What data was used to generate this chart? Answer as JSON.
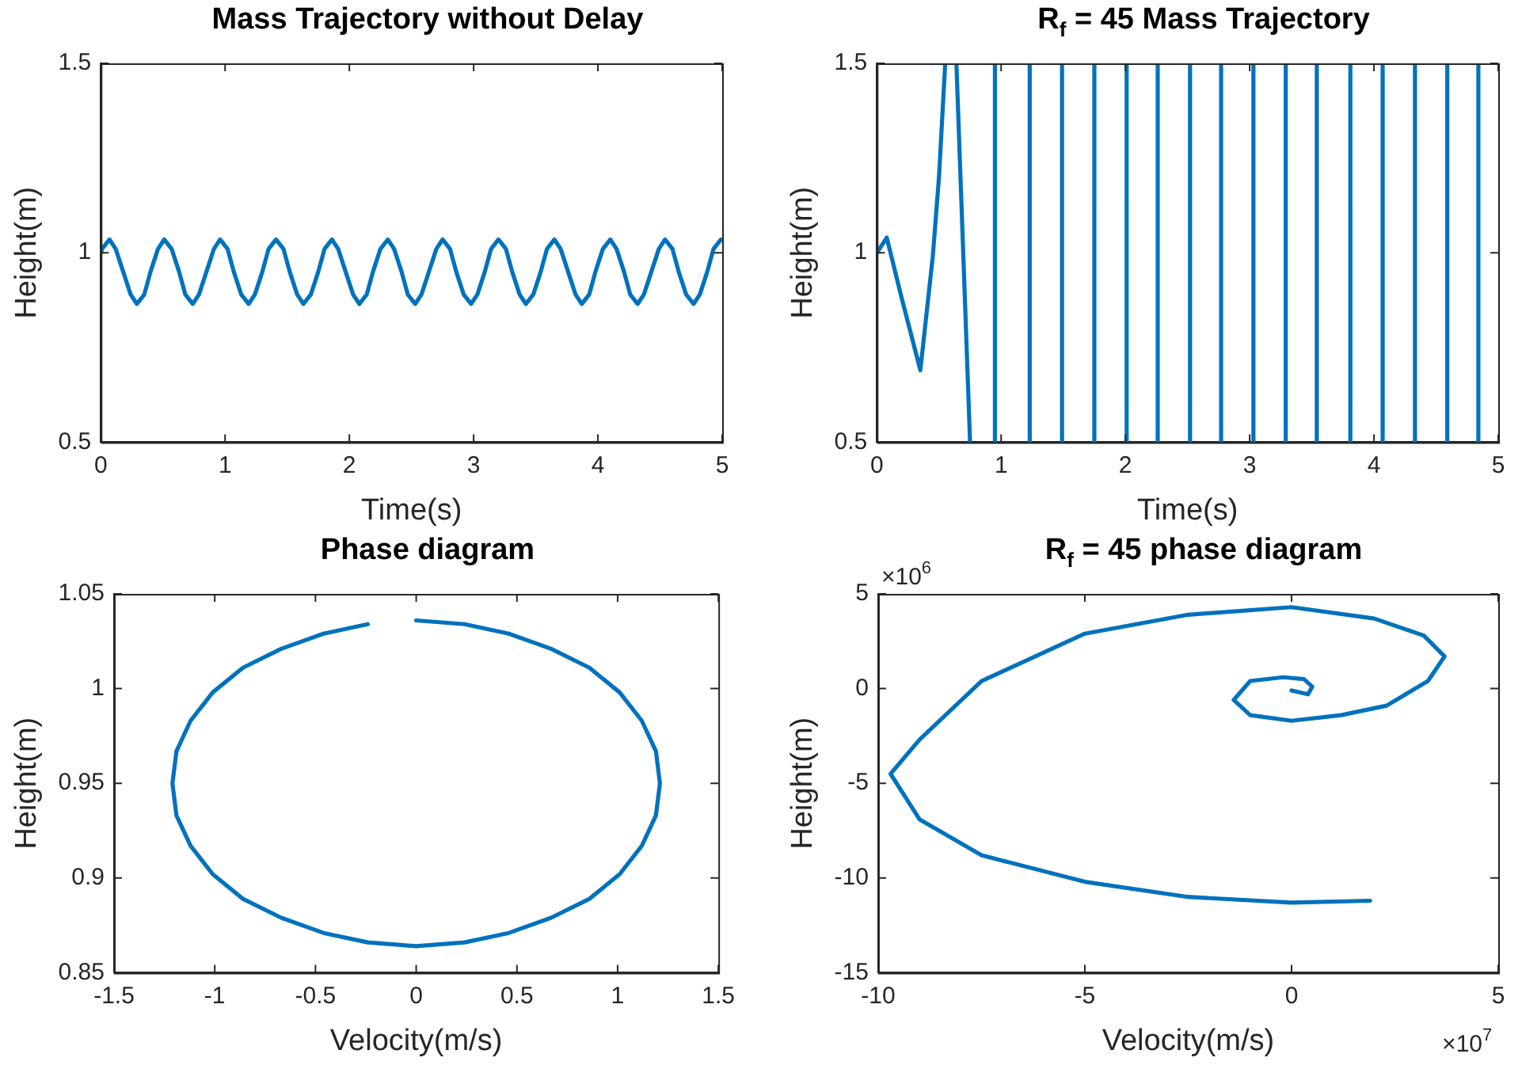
{
  "chart_data": [
    {
      "type": "line",
      "title": "Mass Trajectory without Delay",
      "xlabel": "Time(s)",
      "ylabel": "Height(m)",
      "xlim": [
        0,
        5
      ],
      "xticks": [
        0,
        1,
        2,
        3,
        4,
        5
      ],
      "ylim": [
        0.5,
        1.5
      ],
      "yticks": [
        0.5,
        1,
        1.5
      ],
      "series": [
        {
          "color": "#0072bd",
          "x": [
            0,
            0.01,
            0.07,
            0.12,
            0.18,
            0.24,
            0.29,
            0.35,
            0.4,
            0.46,
            0.51,
            0.57,
            0.63,
            0.68,
            0.74,
            0.79,
            0.85,
            0.91,
            0.96,
            1.02,
            1.07,
            1.13,
            1.19,
            1.24,
            1.3,
            1.35,
            1.41,
            1.47,
            1.52,
            1.58,
            1.63,
            1.69,
            1.75,
            1.8,
            1.86,
            1.91,
            1.97,
            2.03,
            2.08,
            2.14,
            2.19,
            2.25,
            2.31,
            2.36,
            2.42,
            2.47,
            2.53,
            2.58,
            2.64,
            2.7,
            2.75,
            2.81,
            2.86,
            2.92,
            2.98,
            3.03,
            3.09,
            3.14,
            3.2,
            3.26,
            3.31,
            3.37,
            3.42,
            3.48,
            3.54,
            3.59,
            3.65,
            3.7,
            3.76,
            3.82,
            3.87,
            3.93,
            3.98,
            4.04,
            4.1,
            4.15,
            4.21,
            4.26,
            4.32,
            4.37,
            4.43,
            4.49,
            4.54,
            4.6,
            4.65,
            4.71,
            4.77,
            4.82,
            4.88,
            4.93,
            4.99
          ],
          "values": [
            1,
            1.01,
            1.035,
            1.01,
            0.95,
            0.89,
            0.865,
            0.89,
            0.95,
            1.01,
            1.035,
            1.01,
            0.95,
            0.89,
            0.865,
            0.89,
            0.95,
            1.01,
            1.035,
            1.01,
            0.95,
            0.89,
            0.865,
            0.89,
            0.95,
            1.01,
            1.035,
            1.01,
            0.95,
            0.89,
            0.865,
            0.89,
            0.95,
            1.01,
            1.035,
            1.01,
            0.95,
            0.89,
            0.865,
            0.89,
            0.95,
            1.01,
            1.035,
            1.01,
            0.95,
            0.89,
            0.865,
            0.89,
            0.95,
            1.01,
            1.035,
            1.01,
            0.95,
            0.89,
            0.865,
            0.89,
            0.95,
            1.01,
            1.035,
            1.01,
            0.95,
            0.89,
            0.865,
            0.89,
            0.95,
            1.01,
            1.035,
            1.01,
            0.95,
            0.89,
            0.865,
            0.89,
            0.95,
            1.01,
            1.035,
            1.01,
            0.95,
            0.89,
            0.865,
            0.89,
            0.95,
            1.01,
            1.035,
            1.01,
            0.95,
            0.89,
            0.865,
            0.89,
            0.95,
            1.01,
            1.035
          ]
        }
      ]
    },
    {
      "type": "line",
      "title": "R$_{f}$ = 45 Mass Trajectory",
      "xlabel": "Time(s)",
      "ylabel": "Height(m)",
      "xlim": [
        0,
        5
      ],
      "xticks": [
        0,
        1,
        2,
        3,
        4,
        5
      ],
      "ylim": [
        0.5,
        1.5
      ],
      "yticks": [
        0.5,
        1,
        1.5
      ],
      "series": [
        {
          "color": "#0072bd",
          "x": [
            0,
            0.08,
            0.2,
            0.35,
            0.45,
            0.5,
            0.55,
            0.6,
            0.64,
            0.75,
            0.85,
            0.95,
            0.95,
            1.09,
            1.23,
            1.23,
            1.36,
            1.49,
            1.49,
            1.62,
            1.75,
            1.75,
            1.88,
            2.01,
            2.01,
            2.13,
            2.26,
            2.26,
            2.39,
            2.52,
            2.52,
            2.64,
            2.77,
            2.77,
            2.9,
            3.03,
            3.03,
            3.16,
            3.29,
            3.29,
            3.41,
            3.54,
            3.54,
            3.67,
            3.81,
            3.81,
            3.94,
            4.07,
            4.07,
            4.2,
            4.33,
            4.33,
            4.46,
            4.59,
            4.59,
            4.71,
            4.84,
            4.84
          ],
          "values": [
            1,
            1.04,
            0.88,
            0.69,
            0.99,
            1.2,
            1.5,
            null,
            1.5,
            0.5,
            null,
            0.5,
            1.5,
            null,
            1.5,
            0.5,
            null,
            0.5,
            1.5,
            null,
            1.5,
            0.5,
            null,
            0.5,
            1.5,
            null,
            1.5,
            0.5,
            null,
            0.5,
            1.5,
            null,
            1.5,
            0.5,
            null,
            0.5,
            1.5,
            null,
            1.5,
            0.5,
            null,
            0.5,
            1.5,
            null,
            1.5,
            0.5,
            null,
            0.5,
            1.5,
            null,
            1.5,
            0.5,
            null,
            0.5,
            1.5,
            null,
            1.5,
            0.5
          ]
        }
      ]
    },
    {
      "type": "line",
      "title": "Phase diagram",
      "xlabel": "Velocity(m/s)",
      "ylabel": "Height(m)",
      "xlim": [
        -1.5,
        1.5
      ],
      "xticks": [
        -1.5,
        -1,
        -0.5,
        0,
        0.5,
        1,
        1.5
      ],
      "ylim": [
        0.85,
        1.05
      ],
      "yticks": [
        0.85,
        0.9,
        0.95,
        1,
        1.05
      ],
      "series": [
        {
          "color": "#0072bd",
          "x": [
            0,
            0.24,
            0.46,
            0.67,
            0.86,
            1.01,
            1.12,
            1.19,
            1.21,
            1.19,
            1.12,
            1.01,
            0.86,
            0.67,
            0.46,
            0.24,
            0,
            -0.24,
            -0.46,
            -0.67,
            -0.86,
            -1.01,
            -1.12,
            -1.19,
            -1.21,
            -1.19,
            -1.12,
            -1.01,
            -0.86,
            -0.67,
            -0.46,
            -0.24
          ],
          "values": [
            1.036,
            1.034,
            1.029,
            1.021,
            1.011,
            0.998,
            0.983,
            0.967,
            0.95,
            0.933,
            0.917,
            0.902,
            0.889,
            0.879,
            0.871,
            0.866,
            0.864,
            0.866,
            0.871,
            0.879,
            0.889,
            0.902,
            0.917,
            0.933,
            0.95,
            0.967,
            0.983,
            0.998,
            1.011,
            1.021,
            1.029,
            1.034
          ]
        }
      ]
    },
    {
      "type": "line",
      "title": "R$_{f}$ = 45 phase diagram",
      "xlabel": "Velocity(m/s)",
      "ylabel": "Height(m)",
      "annotations": [
        "×10$^{6}$",
        "×10$^{7}$"
      ],
      "xlim": [
        -10,
        5
      ],
      "xticks": [
        -10,
        -5,
        0,
        5
      ],
      "ylim": [
        -15,
        5
      ],
      "yticks": [
        -15,
        -10,
        -5,
        0,
        5
      ],
      "series": [
        {
          "color": "#0072bd",
          "x": [
            0,
            0.4,
            0.5,
            0.3,
            -0.2,
            -1,
            -1.4,
            -1,
            0,
            1.2,
            2.3,
            3.3,
            3.7,
            3.2,
            2,
            0,
            -2.5,
            -5,
            -7.5,
            -9,
            -9.7,
            -9,
            -7.5,
            -5,
            -2.5,
            0,
            1.9
          ],
          "values": [
            -0.1,
            -0.3,
            0.1,
            0.5,
            0.6,
            0.4,
            -0.6,
            -1.4,
            -1.7,
            -1.4,
            -0.9,
            0.4,
            1.7,
            2.8,
            3.7,
            4.3,
            3.9,
            2.9,
            0.4,
            -2.7,
            -4.5,
            -6.9,
            -8.8,
            -10.2,
            -11,
            -11.3,
            -11.2
          ]
        }
      ]
    }
  ]
}
